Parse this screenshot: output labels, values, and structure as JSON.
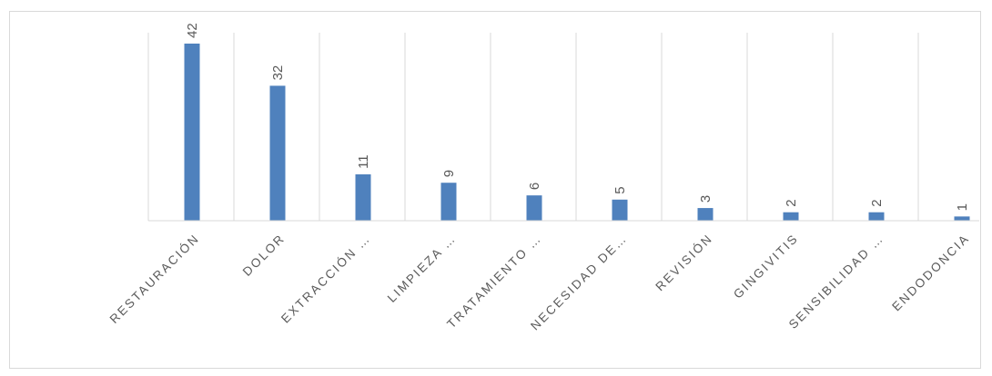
{
  "chart_data": {
    "type": "bar",
    "categories": [
      "RESTAURACIÓN",
      "DOLOR",
      "EXTRACCIÓN …",
      "LIMPIEZA …",
      "TRATAMIENTO …",
      "NECESIDAD DE…",
      "REVISIÓN",
      "GINGIVITIS",
      "SENSIBILIDAD …",
      "ENDODONCIA"
    ],
    "values": [
      42,
      32,
      11,
      9,
      6,
      5,
      3,
      2,
      2,
      1
    ],
    "title": "",
    "xlabel": "",
    "ylabel": "",
    "ylim": [
      0,
      42
    ],
    "grid": "vertical category separators",
    "legend": "none",
    "bar_color": "#4f81bd",
    "grid_color": "#d9d9d9",
    "axis_color": "#d9d9d9",
    "text_color": "#595959"
  }
}
